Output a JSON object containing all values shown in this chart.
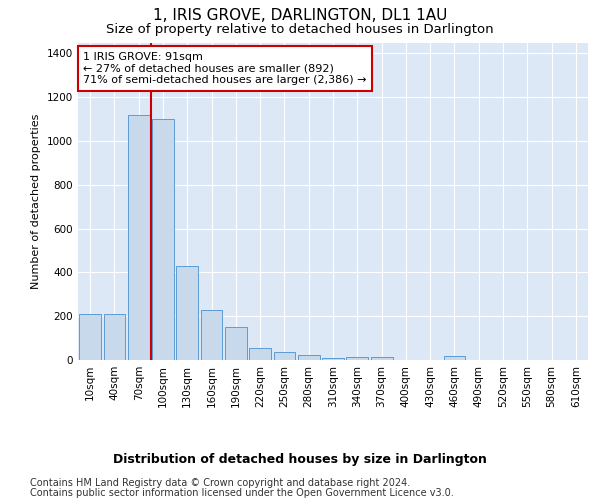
{
  "title": "1, IRIS GROVE, DARLINGTON, DL1 1AU",
  "subtitle": "Size of property relative to detached houses in Darlington",
  "xlabel": "Distribution of detached houses by size in Darlington",
  "ylabel": "Number of detached properties",
  "bar_labels": [
    "10sqm",
    "40sqm",
    "70sqm",
    "100sqm",
    "130sqm",
    "160sqm",
    "190sqm",
    "220sqm",
    "250sqm",
    "280sqm",
    "310sqm",
    "340sqm",
    "370sqm",
    "400sqm",
    "430sqm",
    "460sqm",
    "490sqm",
    "520sqm",
    "550sqm",
    "580sqm",
    "610sqm"
  ],
  "bar_values": [
    210,
    210,
    1120,
    1100,
    430,
    230,
    150,
    55,
    38,
    25,
    10,
    15,
    15,
    0,
    0,
    20,
    0,
    0,
    0,
    0,
    0
  ],
  "bar_color": "#c9d9ec",
  "bar_edge_color": "#5b9bd5",
  "vline_color": "#cc0000",
  "annotation_text": "1 IRIS GROVE: 91sqm\n← 27% of detached houses are smaller (892)\n71% of semi-detached houses are larger (2,386) →",
  "annotation_box_color": "#ffffff",
  "annotation_box_edge": "#cc0000",
  "ylim": [
    0,
    1450
  ],
  "yticks": [
    0,
    200,
    400,
    600,
    800,
    1000,
    1200,
    1400
  ],
  "footer_line1": "Contains HM Land Registry data © Crown copyright and database right 2024.",
  "footer_line2": "Contains public sector information licensed under the Open Government Licence v3.0.",
  "bg_color": "#dce8f5",
  "title_fontsize": 11,
  "subtitle_fontsize": 9.5,
  "xlabel_fontsize": 9,
  "ylabel_fontsize": 8,
  "tick_fontsize": 7.5,
  "footer_fontsize": 7,
  "ann_fontsize": 8
}
